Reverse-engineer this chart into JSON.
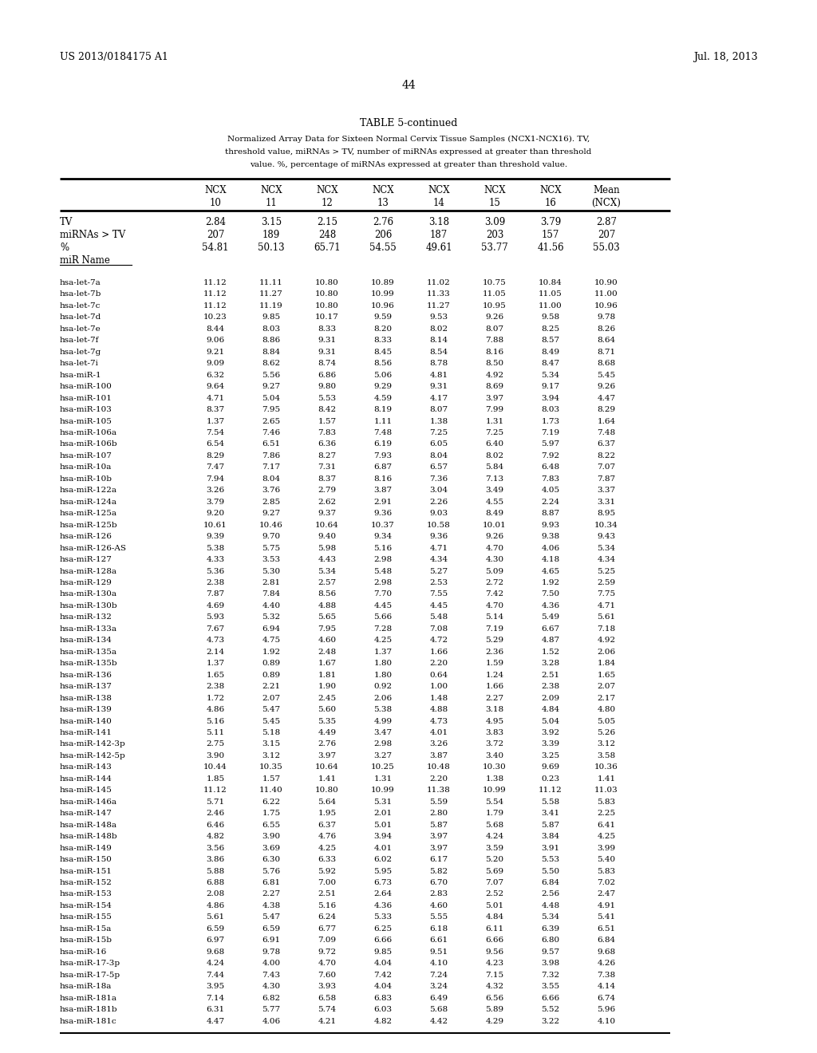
{
  "title_left": "US 2013/0184175 A1",
  "title_right": "Jul. 18, 2013",
  "page_number": "44",
  "table_title": "TABLE 5-continued",
  "table_caption_lines": [
    "Normalized Array Data for Sixteen Normal Cervix Tissue Samples (NCX1-NCX16). TV,",
    "threshold value, miRNAs > TV, number of miRNAs expressed at greater than threshold",
    "value. %, percentage of miRNAs expressed at greater than threshold value."
  ],
  "col_headers_line1": [
    "",
    "NCX",
    "NCX",
    "NCX",
    "NCX",
    "NCX",
    "NCX",
    "NCX",
    "Mean"
  ],
  "col_headers_line2": [
    "",
    "10",
    "11",
    "12",
    "13",
    "14",
    "15",
    "16",
    "(NCX)"
  ],
  "summary_rows": [
    [
      "TV",
      "2.84",
      "3.15",
      "2.15",
      "2.76",
      "3.18",
      "3.09",
      "3.79",
      "2.87"
    ],
    [
      "miRNAs > TV",
      "207",
      "189",
      "248",
      "206",
      "187",
      "203",
      "157",
      "207"
    ],
    [
      "%",
      "54.81",
      "50.13",
      "65.71",
      "54.55",
      "49.61",
      "53.77",
      "41.56",
      "55.03"
    ],
    [
      "miR Name",
      "",
      "",
      "",
      "",
      "",
      "",
      "",
      ""
    ]
  ],
  "data_rows": [
    [
      "hsa-let-7a",
      "11.12",
      "11.11",
      "10.80",
      "10.89",
      "11.02",
      "10.75",
      "10.84",
      "10.90"
    ],
    [
      "hsa-let-7b",
      "11.12",
      "11.27",
      "10.80",
      "10.99",
      "11.33",
      "11.05",
      "11.05",
      "11.00"
    ],
    [
      "hsa-let-7c",
      "11.12",
      "11.19",
      "10.80",
      "10.96",
      "11.27",
      "10.95",
      "11.00",
      "10.96"
    ],
    [
      "hsa-let-7d",
      "10.23",
      "9.85",
      "10.17",
      "9.59",
      "9.53",
      "9.26",
      "9.58",
      "9.78"
    ],
    [
      "hsa-let-7e",
      "8.44",
      "8.03",
      "8.33",
      "8.20",
      "8.02",
      "8.07",
      "8.25",
      "8.26"
    ],
    [
      "hsa-let-7f",
      "9.06",
      "8.86",
      "9.31",
      "8.33",
      "8.14",
      "7.88",
      "8.57",
      "8.64"
    ],
    [
      "hsa-let-7g",
      "9.21",
      "8.84",
      "9.31",
      "8.45",
      "8.54",
      "8.16",
      "8.49",
      "8.71"
    ],
    [
      "hsa-let-7i",
      "9.09",
      "8.62",
      "8.74",
      "8.56",
      "8.78",
      "8.50",
      "8.47",
      "8.68"
    ],
    [
      "hsa-miR-1",
      "6.32",
      "5.56",
      "6.86",
      "5.06",
      "4.81",
      "4.92",
      "5.34",
      "5.45"
    ],
    [
      "hsa-miR-100",
      "9.64",
      "9.27",
      "9.80",
      "9.29",
      "9.31",
      "8.69",
      "9.17",
      "9.26"
    ],
    [
      "hsa-miR-101",
      "4.71",
      "5.04",
      "5.53",
      "4.59",
      "4.17",
      "3.97",
      "3.94",
      "4.47"
    ],
    [
      "hsa-miR-103",
      "8.37",
      "7.95",
      "8.42",
      "8.19",
      "8.07",
      "7.99",
      "8.03",
      "8.29"
    ],
    [
      "hsa-miR-105",
      "1.37",
      "2.65",
      "1.57",
      "1.11",
      "1.38",
      "1.31",
      "1.73",
      "1.64"
    ],
    [
      "hsa-miR-106a",
      "7.54",
      "7.46",
      "7.83",
      "7.48",
      "7.25",
      "7.25",
      "7.19",
      "7.48"
    ],
    [
      "hsa-miR-106b",
      "6.54",
      "6.51",
      "6.36",
      "6.19",
      "6.05",
      "6.40",
      "5.97",
      "6.37"
    ],
    [
      "hsa-miR-107",
      "8.29",
      "7.86",
      "8.27",
      "7.93",
      "8.04",
      "8.02",
      "7.92",
      "8.22"
    ],
    [
      "hsa-miR-10a",
      "7.47",
      "7.17",
      "7.31",
      "6.87",
      "6.57",
      "5.84",
      "6.48",
      "7.07"
    ],
    [
      "hsa-miR-10b",
      "7.94",
      "8.04",
      "8.37",
      "8.16",
      "7.36",
      "7.13",
      "7.83",
      "7.87"
    ],
    [
      "hsa-miR-122a",
      "3.26",
      "3.76",
      "2.79",
      "3.87",
      "3.04",
      "3.49",
      "4.05",
      "3.37"
    ],
    [
      "hsa-miR-124a",
      "3.79",
      "2.85",
      "2.62",
      "2.91",
      "2.26",
      "4.55",
      "2.24",
      "3.31"
    ],
    [
      "hsa-miR-125a",
      "9.20",
      "9.27",
      "9.37",
      "9.36",
      "9.03",
      "8.49",
      "8.87",
      "8.95"
    ],
    [
      "hsa-miR-125b",
      "10.61",
      "10.46",
      "10.64",
      "10.37",
      "10.58",
      "10.01",
      "9.93",
      "10.34"
    ],
    [
      "hsa-miR-126",
      "9.39",
      "9.70",
      "9.40",
      "9.34",
      "9.36",
      "9.26",
      "9.38",
      "9.43"
    ],
    [
      "hsa-miR-126-AS",
      "5.38",
      "5.75",
      "5.98",
      "5.16",
      "4.71",
      "4.70",
      "4.06",
      "5.34"
    ],
    [
      "hsa-miR-127",
      "4.33",
      "3.53",
      "4.43",
      "2.98",
      "4.34",
      "4.30",
      "4.18",
      "4.34"
    ],
    [
      "hsa-miR-128a",
      "5.36",
      "5.30",
      "5.34",
      "5.48",
      "5.27",
      "5.09",
      "4.65",
      "5.25"
    ],
    [
      "hsa-miR-129",
      "2.38",
      "2.81",
      "2.57",
      "2.98",
      "2.53",
      "2.72",
      "1.92",
      "2.59"
    ],
    [
      "hsa-miR-130a",
      "7.87",
      "7.84",
      "8.56",
      "7.70",
      "7.55",
      "7.42",
      "7.50",
      "7.75"
    ],
    [
      "hsa-miR-130b",
      "4.69",
      "4.40",
      "4.88",
      "4.45",
      "4.45",
      "4.70",
      "4.36",
      "4.71"
    ],
    [
      "hsa-miR-132",
      "5.93",
      "5.32",
      "5.65",
      "5.66",
      "5.48",
      "5.14",
      "5.49",
      "5.61"
    ],
    [
      "hsa-miR-133a",
      "7.67",
      "6.94",
      "7.95",
      "7.28",
      "7.08",
      "7.19",
      "6.67",
      "7.18"
    ],
    [
      "hsa-miR-134",
      "4.73",
      "4.75",
      "4.60",
      "4.25",
      "4.72",
      "5.29",
      "4.87",
      "4.92"
    ],
    [
      "hsa-miR-135a",
      "2.14",
      "1.92",
      "2.48",
      "1.37",
      "1.66",
      "2.36",
      "1.52",
      "2.06"
    ],
    [
      "hsa-miR-135b",
      "1.37",
      "0.89",
      "1.67",
      "1.80",
      "2.20",
      "1.59",
      "3.28",
      "1.84"
    ],
    [
      "hsa-miR-136",
      "1.65",
      "0.89",
      "1.81",
      "1.80",
      "0.64",
      "1.24",
      "2.51",
      "1.65"
    ],
    [
      "hsa-miR-137",
      "2.38",
      "2.21",
      "1.90",
      "0.92",
      "1.00",
      "1.66",
      "2.38",
      "2.07"
    ],
    [
      "hsa-miR-138",
      "1.72",
      "2.07",
      "2.45",
      "2.06",
      "1.48",
      "2.27",
      "2.09",
      "2.17"
    ],
    [
      "hsa-miR-139",
      "4.86",
      "5.47",
      "5.60",
      "5.38",
      "4.88",
      "3.18",
      "4.84",
      "4.80"
    ],
    [
      "hsa-miR-140",
      "5.16",
      "5.45",
      "5.35",
      "4.99",
      "4.73",
      "4.95",
      "5.04",
      "5.05"
    ],
    [
      "hsa-miR-141",
      "5.11",
      "5.18",
      "4.49",
      "3.47",
      "4.01",
      "3.83",
      "3.92",
      "5.26"
    ],
    [
      "hsa-miR-142-3p",
      "2.75",
      "3.15",
      "2.76",
      "2.98",
      "3.26",
      "3.72",
      "3.39",
      "3.12"
    ],
    [
      "hsa-miR-142-5p",
      "3.90",
      "3.12",
      "3.97",
      "3.27",
      "3.87",
      "3.40",
      "3.25",
      "3.58"
    ],
    [
      "hsa-miR-143",
      "10.44",
      "10.35",
      "10.64",
      "10.25",
      "10.48",
      "10.30",
      "9.69",
      "10.36"
    ],
    [
      "hsa-miR-144",
      "1.85",
      "1.57",
      "1.41",
      "1.31",
      "2.20",
      "1.38",
      "0.23",
      "1.41"
    ],
    [
      "hsa-miR-145",
      "11.12",
      "11.40",
      "10.80",
      "10.99",
      "11.38",
      "10.99",
      "11.12",
      "11.03"
    ],
    [
      "hsa-miR-146a",
      "5.71",
      "6.22",
      "5.64",
      "5.31",
      "5.59",
      "5.54",
      "5.58",
      "5.83"
    ],
    [
      "hsa-miR-147",
      "2.46",
      "1.75",
      "1.95",
      "2.01",
      "2.80",
      "1.79",
      "3.41",
      "2.25"
    ],
    [
      "hsa-miR-148a",
      "6.46",
      "6.55",
      "6.37",
      "5.01",
      "5.87",
      "5.68",
      "5.87",
      "6.41"
    ],
    [
      "hsa-miR-148b",
      "4.82",
      "3.90",
      "4.76",
      "3.94",
      "3.97",
      "4.24",
      "3.84",
      "4.25"
    ],
    [
      "hsa-miR-149",
      "3.56",
      "3.69",
      "4.25",
      "4.01",
      "3.97",
      "3.59",
      "3.91",
      "3.99"
    ],
    [
      "hsa-miR-150",
      "3.86",
      "6.30",
      "6.33",
      "6.02",
      "6.17",
      "5.20",
      "5.53",
      "5.40"
    ],
    [
      "hsa-miR-151",
      "5.88",
      "5.76",
      "5.92",
      "5.95",
      "5.82",
      "5.69",
      "5.50",
      "5.83"
    ],
    [
      "hsa-miR-152",
      "6.88",
      "6.81",
      "7.00",
      "6.73",
      "6.70",
      "7.07",
      "6.84",
      "7.02"
    ],
    [
      "hsa-miR-153",
      "2.08",
      "2.27",
      "2.51",
      "2.64",
      "2.83",
      "2.52",
      "2.56",
      "2.47"
    ],
    [
      "hsa-miR-154",
      "4.86",
      "4.38",
      "5.16",
      "4.36",
      "4.60",
      "5.01",
      "4.48",
      "4.91"
    ],
    [
      "hsa-miR-155",
      "5.61",
      "5.47",
      "6.24",
      "5.33",
      "5.55",
      "4.84",
      "5.34",
      "5.41"
    ],
    [
      "hsa-miR-15a",
      "6.59",
      "6.59",
      "6.77",
      "6.25",
      "6.18",
      "6.11",
      "6.39",
      "6.51"
    ],
    [
      "hsa-miR-15b",
      "6.97",
      "6.91",
      "7.09",
      "6.66",
      "6.61",
      "6.66",
      "6.80",
      "6.84"
    ],
    [
      "hsa-miR-16",
      "9.68",
      "9.78",
      "9.72",
      "9.85",
      "9.51",
      "9.56",
      "9.57",
      "9.68"
    ],
    [
      "hsa-miR-17-3p",
      "4.24",
      "4.00",
      "4.70",
      "4.04",
      "4.10",
      "4.23",
      "3.98",
      "4.26"
    ],
    [
      "hsa-miR-17-5p",
      "7.44",
      "7.43",
      "7.60",
      "7.42",
      "7.24",
      "7.15",
      "7.32",
      "7.38"
    ],
    [
      "hsa-miR-18a",
      "3.95",
      "4.30",
      "3.93",
      "4.04",
      "3.24",
      "4.32",
      "3.55",
      "4.14"
    ],
    [
      "hsa-miR-181a",
      "7.14",
      "6.82",
      "6.58",
      "6.83",
      "6.49",
      "6.56",
      "6.66",
      "6.74"
    ],
    [
      "hsa-miR-181b",
      "6.31",
      "5.77",
      "5.74",
      "6.03",
      "5.68",
      "5.89",
      "5.52",
      "5.96"
    ],
    [
      "hsa-miR-181c",
      "4.47",
      "4.06",
      "4.21",
      "4.82",
      "4.42",
      "4.29",
      "3.22",
      "4.10"
    ]
  ],
  "page_bg": "#ffffff",
  "text_color": "#000000",
  "font_size_header": 8.5,
  "font_size_body": 7.5,
  "font_size_title": 9.0,
  "font_size_page": 9.0
}
